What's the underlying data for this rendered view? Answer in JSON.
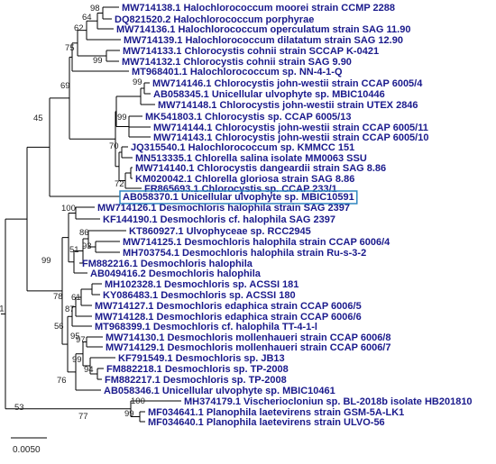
{
  "taxa": [
    "MW714138.1 Halochlorococcum moorei strain CCMP 2288",
    "DQ821520.2 Halochlorococcum porphyrae",
    "MW714136.1 Halochlorococcum operculatum strain SAG 11.90",
    "MW714139.1 Halochlorococcum dilatatum strain SAG 12.90",
    "MW714133.1 Chlorocystis cohnii strain SCCAP K-0421",
    "MW714132.1 Chlorocystis cohnii strain SAG 9.90",
    "MT968401.1 Halochlorococcum sp. NN-4-1-Q",
    "MW714146.1 Chlorocystis john-westii strain CCAP 6005/4",
    "AB058345.1 Unicellular ulvophyte sp. MBIC10446",
    "MW714148.1 Chlorocystis john-westii strain UTEX 2846",
    "MK541803.1 Chlorocystis sp. CCAP 6005/13",
    "MW714144.1 Chlorocystis john-westii strain CCAP 6005/11",
    "MW714143.1 Chlorocystis john-westii strain CCAP 6005/10",
    "JQ315540.1 Halochlorococcum sp. KMMCC 151",
    "MN513335.1 Chlorella salina isolate MM0063 SSU",
    "MW714140.1 Chlorocystis dangeardii strain SAG 8.86",
    "KM020042.1 Chlorella gloriosa strain SAG 8.86",
    "FR865693.1 Chlorocystis sp. CCAP 233/1",
    "AB058370.1 Unicellular ulvophyte sp. MBIC10591",
    "MW714126.1 Desmochloris halophila strain SAG 2397",
    "KF144190.1 Desmochloris cf. halophila SAG 2397",
    "KT860927.1 Ulvophyceae sp. RCC2945",
    "MW714125.1 Desmochloris halophila strain CCAP 6006/4",
    "MH703754.1 Desmochloris halophila strain Ru-s-3-2",
    "FM882216.1 Desmochloris halophila",
    "AB049416.2 Desmochloris halophila",
    "MH102328.1 Desmochloris sp. ACSSI 181",
    "KY086483.1 Desmochloris sp. ACSSI 180",
    "MW714127.1 Desmochloris edaphica strain CCAP 6006/5",
    "MW714128.1 Desmochloris edaphica strain CCAP 6006/6",
    "MT968399.1 Desmochloris cf. halophila TT-4-1-l",
    "MW714130.1 Desmochloris mollenhaueri strain CCAP 6006/8",
    "MW714129.1 Desmochloris mollenhaueri strain CCAP 6006/7",
    "KF791549.1 Desmochloris sp. JB13",
    "FM882218.1 Desmochloris sp. TP-2008",
    "FM882217.1 Desmochloris sp. TP-2008",
    "AB058346.1 Unicellular ulvophyte sp. MBIC10461",
    "MH374179.1 Vischeriocloniun sp. BL-2018b isolate HB201810",
    "MF034641.1 Planophila laetevirens strain GSM-5A-LK1",
    "MF034640.1 Planophila laetevirens strain ULVO-56"
  ],
  "highlighted_taxon": "AB058370.1 Unicellular ulvophyte sp. MBIC10591",
  "highlight_color": "#2e86c1",
  "label_color": "#1a1a8c",
  "bootstrap": {
    "n1": "98",
    "n2": "64",
    "n3": "62",
    "n4": "99",
    "n5": "75",
    "n6": "99",
    "n7": "70",
    "n8": "72",
    "n9": "99",
    "n10": "69",
    "n11": "45",
    "n12": "77",
    "n13": "100",
    "n14": "86",
    "n15": "93",
    "n16": "51",
    "n17": "99",
    "n18": "61",
    "n19": "87",
    "n20": "56",
    "n21": "97",
    "n22": "99",
    "n23": "95",
    "n24": "94",
    "n25": "76",
    "n26": "78",
    "n27": "53",
    "n28": "99",
    "n29": "100",
    "n30": "91"
  },
  "scale_bar_label": "0.0050"
}
